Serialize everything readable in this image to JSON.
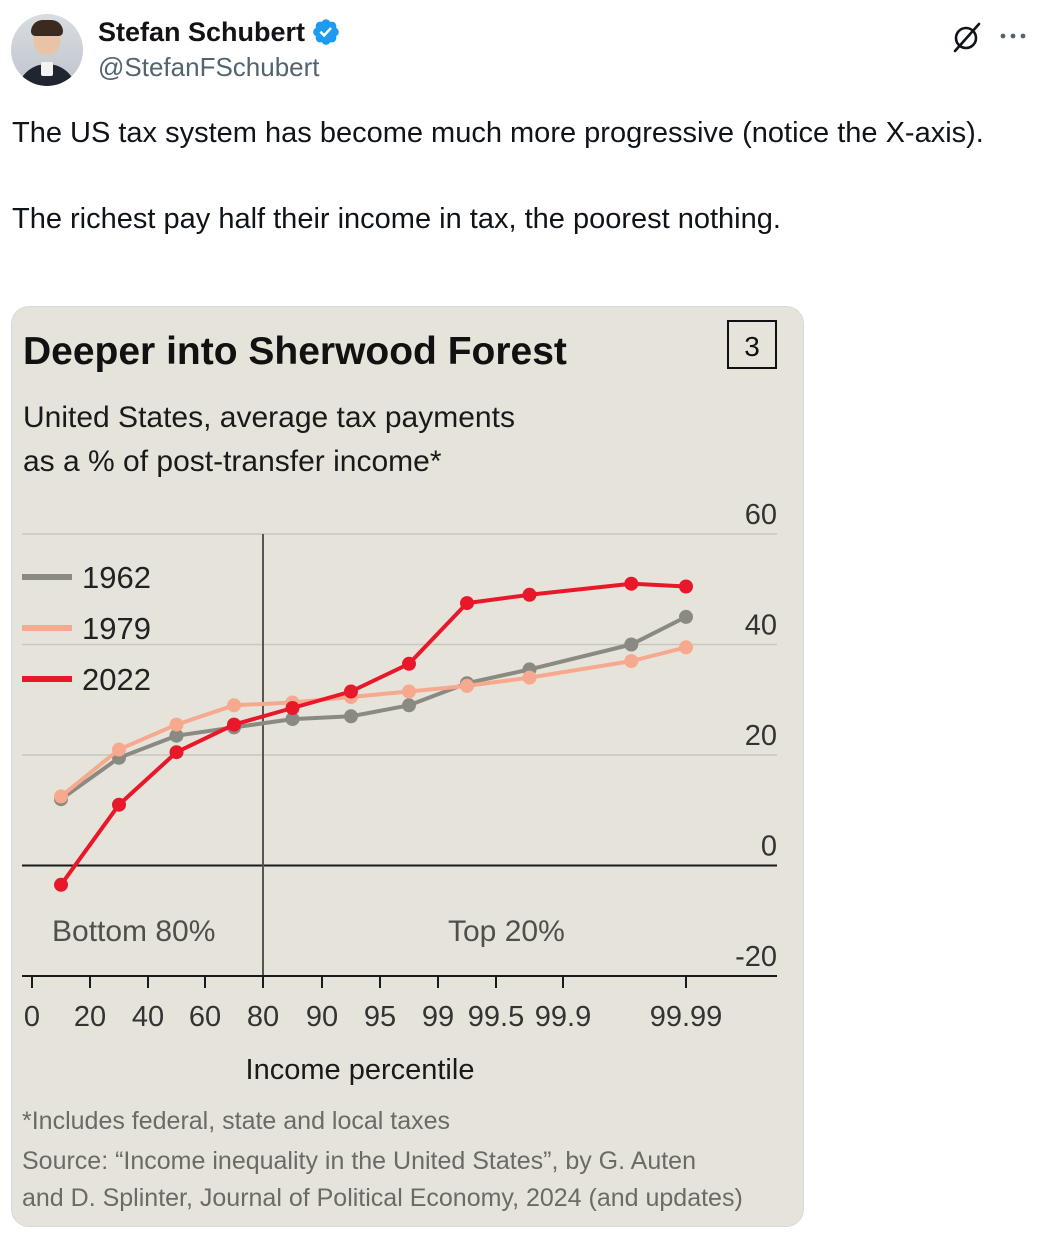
{
  "author": {
    "display_name": "Stefan Schubert",
    "handle": "@StefanFSchubert",
    "avatar_icon": "profile-photo",
    "verified_icon": "verified-badge-icon",
    "verified_color": "#1d9bf0"
  },
  "actions": {
    "grok_icon": "grok-icon",
    "more_icon": "more-options-icon"
  },
  "tweet": {
    "paragraphs": [
      "The US tax system has become much more progressive (notice the X-axis).",
      "The richest pay half their income in tax, the poorest nothing."
    ]
  },
  "chart_data": {
    "type": "line",
    "title": "Deeper into Sherwood Forest",
    "badge": "3",
    "subtitle_lines": [
      "United States, average tax payments",
      "as a % of post-transfer income*"
    ],
    "xlabel": "Income percentile",
    "x": [
      "0",
      "20",
      "40",
      "60",
      "80",
      "90",
      "95",
      "99",
      "99.5",
      "99.9",
      "99.99"
    ],
    "ylim": [
      -20,
      60
    ],
    "yticks": [
      60,
      40,
      20,
      0,
      -20
    ],
    "ytick_labels": [
      "60",
      "40",
      "20",
      "0",
      "-20"
    ],
    "y_axis_side": "right",
    "grid": true,
    "region_labels": [
      "Bottom 80%",
      "Top 20%"
    ],
    "divider_at": "80",
    "legend_position": "top-left",
    "series": [
      {
        "name": "1962",
        "color": "#8a8a82",
        "points": [
          {
            "x": 10,
            "y": 12
          },
          {
            "x": 30,
            "y": 19.5
          },
          {
            "x": 50,
            "y": 23.5
          },
          {
            "x": 70,
            "y": 25
          },
          {
            "x": 85,
            "y": 26.5
          },
          {
            "x": 92.5,
            "y": 27
          },
          {
            "x": 97,
            "y": 29
          },
          {
            "x": 99.25,
            "y": 33
          },
          {
            "x": 99.7,
            "y": 35.5
          },
          {
            "x": 99.95,
            "y": 40
          },
          {
            "x": 99.995,
            "y": 45
          }
        ]
      },
      {
        "name": "1979",
        "color": "#f6a98f",
        "points": [
          {
            "x": 10,
            "y": 12.5
          },
          {
            "x": 30,
            "y": 21
          },
          {
            "x": 50,
            "y": 25.5
          },
          {
            "x": 70,
            "y": 29
          },
          {
            "x": 85,
            "y": 29.5
          },
          {
            "x": 92.5,
            "y": 30.5
          },
          {
            "x": 97,
            "y": 31.5
          },
          {
            "x": 99.25,
            "y": 32.5
          },
          {
            "x": 99.7,
            "y": 34
          },
          {
            "x": 99.95,
            "y": 37
          },
          {
            "x": 99.995,
            "y": 39.5
          }
        ]
      },
      {
        "name": "2022",
        "color": "#e8182a",
        "points": [
          {
            "x": 10,
            "y": -3.5
          },
          {
            "x": 30,
            "y": 11
          },
          {
            "x": 50,
            "y": 20.5
          },
          {
            "x": 70,
            "y": 25.5
          },
          {
            "x": 85,
            "y": 28.5
          },
          {
            "x": 92.5,
            "y": 31.5
          },
          {
            "x": 97,
            "y": 36.5
          },
          {
            "x": 99.25,
            "y": 47.5
          },
          {
            "x": 99.7,
            "y": 49
          },
          {
            "x": 99.95,
            "y": 51
          },
          {
            "x": 99.995,
            "y": 50.5
          }
        ]
      }
    ],
    "footnote": "*Includes federal, state and local taxes",
    "source_lines": [
      "Source: “Income inequality in the United States”, by G. Auten",
      "and D. Splinter, Journal of Political Economy, 2024 (and updates)"
    ]
  }
}
